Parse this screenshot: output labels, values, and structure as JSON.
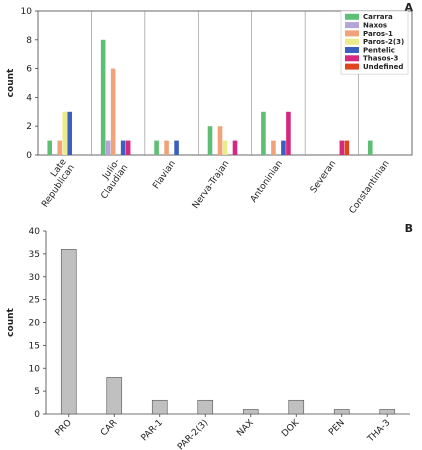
{
  "chart_data": [
    {
      "panel_label": "A",
      "type": "bar",
      "ylabel": "count",
      "ylim": [
        0,
        10
      ],
      "yticks": [
        0,
        2,
        4,
        6,
        8,
        10
      ],
      "grid": "vertical separators between categories",
      "legend_position": "top-right",
      "categories": [
        "Late Republican",
        "Julio-Claudian",
        "Flavian",
        "Nerva-Trajan",
        "Antoninian",
        "Severan",
        "Constantinian"
      ],
      "category_lines": [
        [
          "Late",
          "Republican"
        ],
        [
          "Julio-",
          "Claudian"
        ],
        [
          "Flavian"
        ],
        [
          "Nerva-Trajan"
        ],
        [
          "Antoninian"
        ],
        [
          "Severan"
        ],
        [
          "Constantinian"
        ]
      ],
      "series": [
        {
          "name": "Carrara",
          "color": "#5dbf74",
          "values": [
            1,
            8,
            1,
            2,
            3,
            0,
            1
          ]
        },
        {
          "name": "Naxos",
          "color": "#b3a6d6",
          "values": [
            0,
            1,
            0,
            0,
            0,
            0,
            0
          ]
        },
        {
          "name": "Paros-1",
          "color": "#f2a27a",
          "values": [
            1,
            6,
            1,
            2,
            1,
            0,
            0
          ]
        },
        {
          "name": "Paros-2(3)",
          "color": "#eceb8c",
          "values": [
            3,
            0,
            0,
            1,
            0,
            0,
            0
          ]
        },
        {
          "name": "Pentelic",
          "color": "#3b5fbf",
          "values": [
            3,
            1,
            1,
            0,
            1,
            0,
            0
          ]
        },
        {
          "name": "Thasos-3",
          "color": "#d6287d",
          "values": [
            0,
            1,
            0,
            1,
            3,
            1,
            0
          ]
        },
        {
          "name": "Undefined",
          "color": "#e0451f",
          "values": [
            0,
            0,
            0,
            0,
            0,
            1,
            0
          ]
        }
      ]
    },
    {
      "panel_label": "B",
      "type": "bar",
      "ylabel": "count",
      "ylim": [
        0,
        40
      ],
      "yticks": [
        0,
        5,
        10,
        15,
        20,
        25,
        30,
        35,
        40
      ],
      "categories": [
        "PRO",
        "CAR",
        "PAR-1",
        "PAR-2(3)",
        "NAX",
        "DOK",
        "PEN",
        "THA-3"
      ],
      "values": [
        36,
        8,
        3,
        3,
        1,
        3,
        1,
        1
      ],
      "bar_color": "#c0c0c0"
    }
  ]
}
